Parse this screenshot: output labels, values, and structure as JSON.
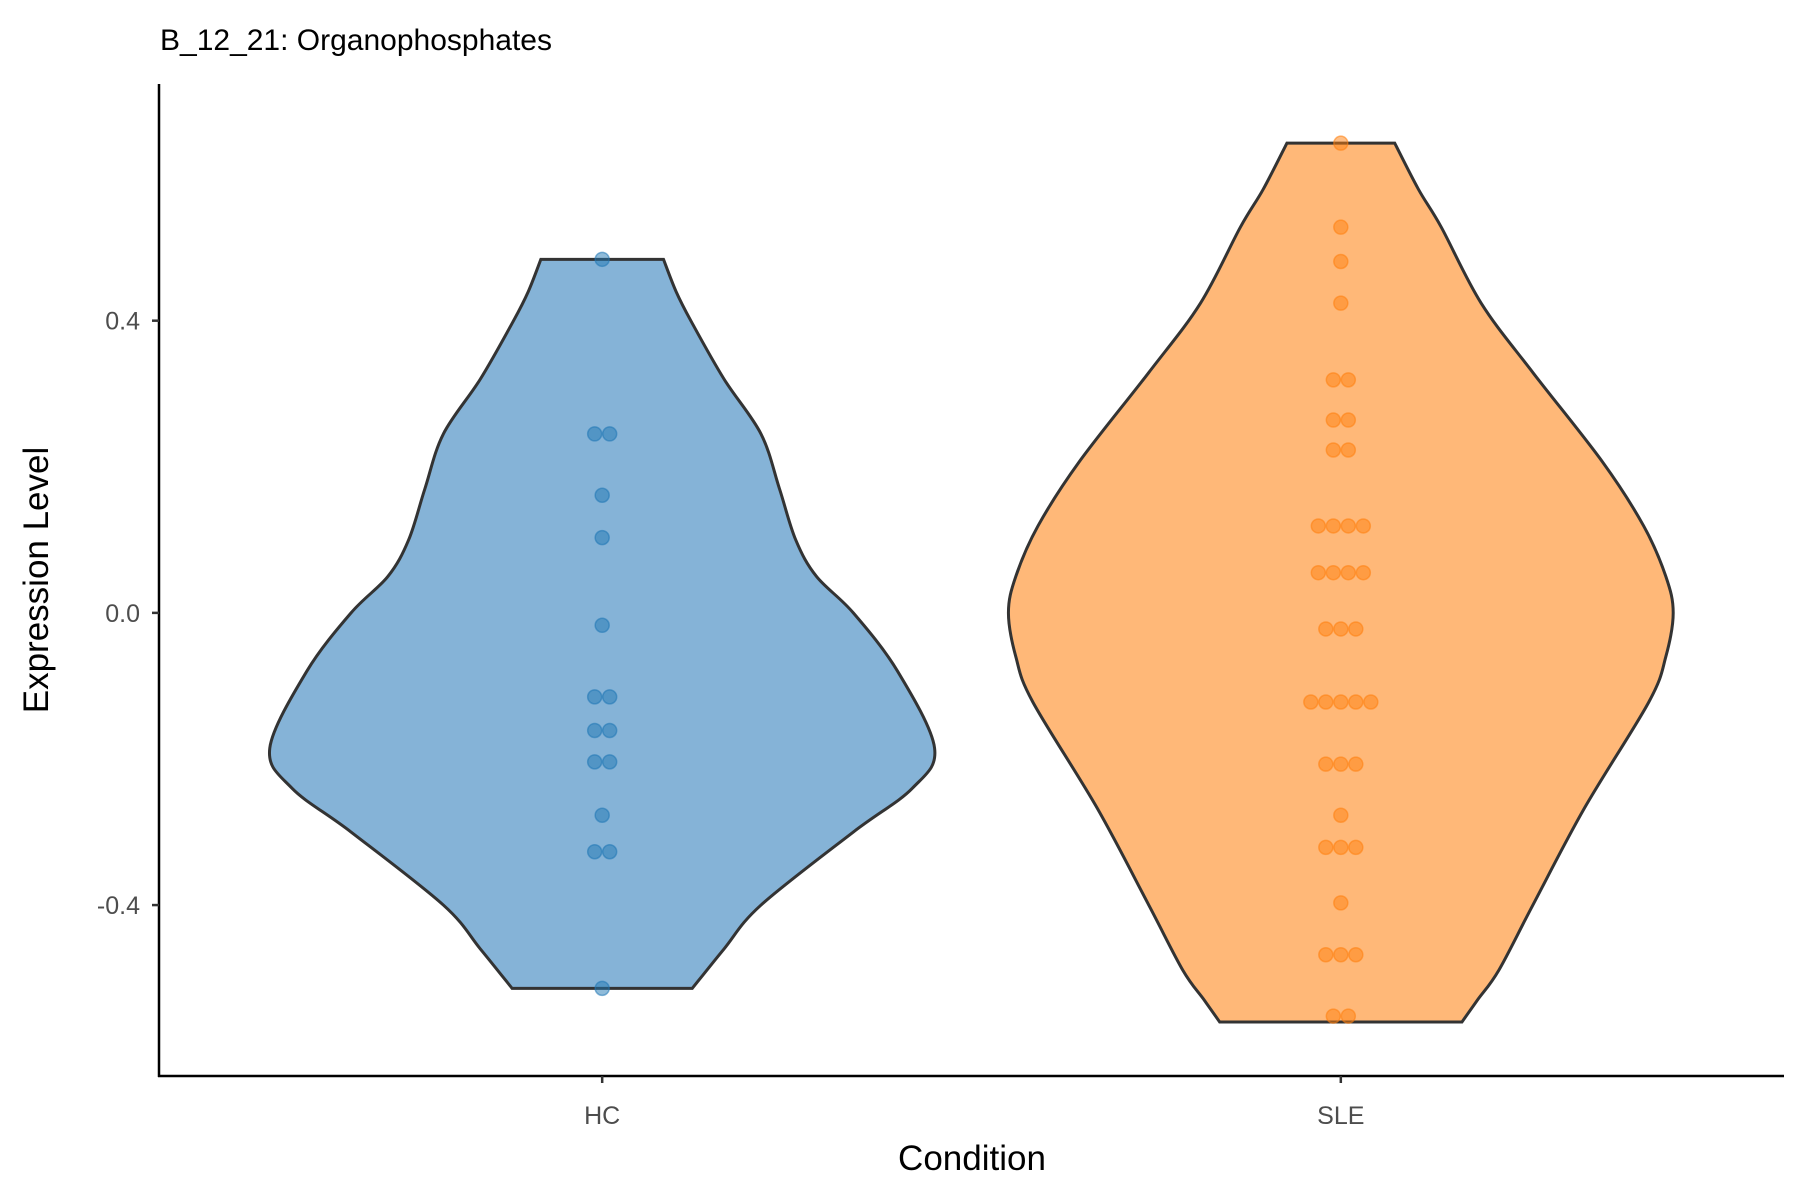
{
  "chart_data": {
    "type": "violin",
    "title": "B_12_21: Organophosphates",
    "xlabel": "Condition",
    "ylabel": "Expression Level",
    "categories": [
      "HC",
      "SLE"
    ],
    "ylim": [
      -0.634,
      0.724
    ],
    "xlim": [
      0.4,
      2.6
    ],
    "yticks": [
      -0.4,
      0.0,
      0.4
    ],
    "ytick_labels": [
      "-0.4",
      "0.0",
      "0.4"
    ],
    "grid": false,
    "legend": "none",
    "series": [
      {
        "name": "HC",
        "fill": "#85b3d7",
        "point_color": "#1f77b4",
        "points": [
          0.484,
          0.245,
          0.245,
          0.161,
          0.103,
          -0.017,
          -0.115,
          -0.115,
          -0.161,
          -0.161,
          -0.204,
          -0.204,
          -0.277,
          -0.327,
          -0.327,
          -0.514
        ],
        "violin_profile": [
          [
            0.484,
            0.083
          ],
          [
            0.44,
            0.1
          ],
          [
            0.4,
            0.12
          ],
          [
            0.32,
            0.165
          ],
          [
            0.245,
            0.215
          ],
          [
            0.17,
            0.24
          ],
          [
            0.1,
            0.262
          ],
          [
            0.05,
            0.29
          ],
          [
            0.0,
            0.34
          ],
          [
            -0.08,
            0.4
          ],
          [
            -0.185,
            0.45
          ],
          [
            -0.24,
            0.42
          ],
          [
            -0.3,
            0.34
          ],
          [
            -0.4,
            0.215
          ],
          [
            -0.46,
            0.165
          ],
          [
            -0.514,
            0.122
          ]
        ]
      },
      {
        "name": "SLE",
        "fill": "#ffb878",
        "point_color": "#ff7f0e",
        "points": [
          0.643,
          0.528,
          0.481,
          0.424,
          0.319,
          0.319,
          0.264,
          0.264,
          0.223,
          0.223,
          0.119,
          0.119,
          0.119,
          0.119,
          0.055,
          0.055,
          0.055,
          0.055,
          -0.022,
          -0.022,
          -0.022,
          -0.122,
          -0.122,
          -0.122,
          -0.122,
          -0.122,
          -0.207,
          -0.207,
          -0.207,
          -0.277,
          -0.321,
          -0.321,
          -0.321,
          -0.397,
          -0.468,
          -0.468,
          -0.468,
          -0.552,
          -0.552
        ],
        "violin_profile": [
          [
            0.643,
            0.073
          ],
          [
            0.58,
            0.105
          ],
          [
            0.528,
            0.136
          ],
          [
            0.424,
            0.19
          ],
          [
            0.329,
            0.26
          ],
          [
            0.207,
            0.354
          ],
          [
            0.119,
            0.41
          ],
          [
            0.05,
            0.44
          ],
          [
            0.0,
            0.45
          ],
          [
            -0.06,
            0.44
          ],
          [
            -0.122,
            0.417
          ],
          [
            -0.267,
            0.33
          ],
          [
            -0.4,
            0.26
          ],
          [
            -0.489,
            0.214
          ],
          [
            -0.53,
            0.185
          ],
          [
            -0.56,
            0.164
          ]
        ]
      }
    ]
  }
}
